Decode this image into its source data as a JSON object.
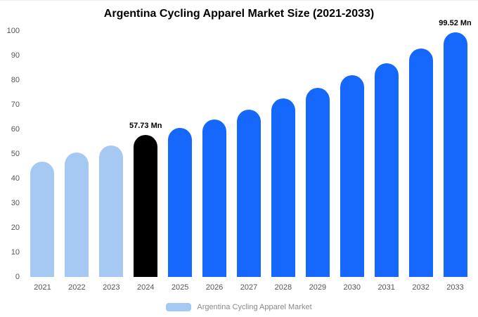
{
  "chart_data": {
    "type": "bar",
    "title": "Argentina Cycling Apparel Market Size (2021-2033)",
    "categories": [
      "2021",
      "2022",
      "2023",
      "2024",
      "2025",
      "2026",
      "2027",
      "2028",
      "2029",
      "2030",
      "2031",
      "2032",
      "2033"
    ],
    "values": [
      47,
      50.5,
      53.5,
      57.73,
      60.5,
      64,
      68,
      72.5,
      77,
      82,
      87,
      93,
      99.52
    ],
    "unit": "Mn",
    "ylim": [
      0,
      100
    ],
    "yticks": [
      0,
      10,
      20,
      30,
      40,
      50,
      60,
      70,
      80,
      90,
      100
    ],
    "grid": false,
    "bar_colors": [
      "#a5c9f3",
      "#a5c9f3",
      "#a5c9f3",
      "#000000",
      "#1667fb",
      "#1667fb",
      "#1667fb",
      "#1667fb",
      "#1667fb",
      "#1667fb",
      "#1667fb",
      "#1667fb",
      "#1667fb"
    ],
    "annotations": [
      {
        "category": "2024",
        "text": "57.73 Mn"
      },
      {
        "category": "2033",
        "text": "99.52 Mn"
      }
    ],
    "legend": {
      "label": "Argentina Cycling Apparel Market",
      "swatch_color": "#a5c9f3",
      "position": "bottom"
    }
  }
}
